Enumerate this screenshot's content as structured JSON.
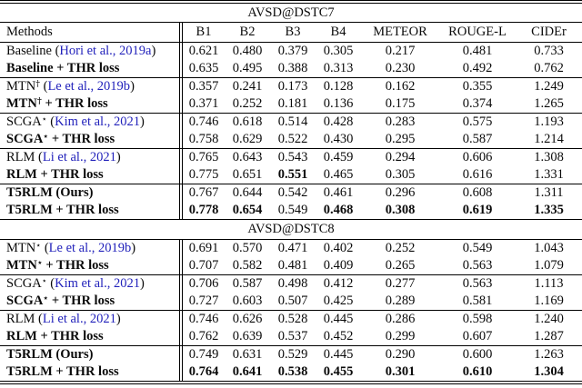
{
  "link_color": "#2222bb",
  "table": {
    "columns": [
      "Methods",
      "B1",
      "B2",
      "B3",
      "B4",
      "METEOR",
      "ROUGE-L",
      "CIDEr"
    ],
    "sections": [
      {
        "title": "AVSD@DSTC7",
        "groups": [
          {
            "rows": [
              {
                "method": {
                  "label": "Baseline",
                  "sup": "",
                  "suffix": "",
                  "cite": "Hori et al., 2019a",
                  "bold": false
                },
                "values": [
                  "0.621",
                  "0.480",
                  "0.379",
                  "0.305",
                  "0.217",
                  "0.481",
                  "0.733"
                ]
              },
              {
                "method": {
                  "label": "Baseline + THR loss",
                  "sup": "",
                  "suffix": "",
                  "cite": null,
                  "bold": true
                },
                "values": [
                  "0.635",
                  "0.495",
                  "0.388",
                  "0.313",
                  "0.230",
                  "0.492",
                  "0.762"
                ]
              }
            ]
          },
          {
            "rows": [
              {
                "method": {
                  "label": "MTN",
                  "sup": "†",
                  "suffix": "",
                  "cite": "Le et al., 2019b",
                  "bold": false
                },
                "values": [
                  "0.357",
                  "0.241",
                  "0.173",
                  "0.128",
                  "0.162",
                  "0.355",
                  "1.249"
                ]
              },
              {
                "method": {
                  "label": "MTN",
                  "sup": "†",
                  "suffix": " + THR loss",
                  "cite": null,
                  "bold": true
                },
                "values": [
                  "0.371",
                  "0.252",
                  "0.181",
                  "0.136",
                  "0.175",
                  "0.374",
                  "1.265"
                ]
              }
            ]
          },
          {
            "rows": [
              {
                "method": {
                  "label": "SCGA",
                  "sup": "⋆",
                  "suffix": "",
                  "cite": "Kim et al., 2021",
                  "bold": false
                },
                "values": [
                  "0.746",
                  "0.618",
                  "0.514",
                  "0.428",
                  "0.283",
                  "0.575",
                  "1.193"
                ]
              },
              {
                "method": {
                  "label": "SCGA",
                  "sup": "⋆",
                  "suffix": " + THR loss",
                  "cite": null,
                  "bold": true
                },
                "values": [
                  "0.758",
                  "0.629",
                  "0.522",
                  "0.430",
                  "0.295",
                  "0.587",
                  "1.214"
                ]
              }
            ]
          },
          {
            "rows": [
              {
                "method": {
                  "label": "RLM",
                  "sup": "",
                  "suffix": "",
                  "cite": "Li et al., 2021",
                  "bold": false
                },
                "values": [
                  "0.765",
                  "0.643",
                  "0.543",
                  "0.459",
                  "0.294",
                  "0.606",
                  "1.308"
                ]
              },
              {
                "method": {
                  "label": "RLM + THR loss",
                  "sup": "",
                  "suffix": "",
                  "cite": null,
                  "bold": true
                },
                "values": [
                  "0.775",
                  "0.651",
                  "0.551",
                  "0.465",
                  "0.305",
                  "0.616",
                  "1.331"
                ],
                "bold_values": [
                  false,
                  false,
                  true,
                  false,
                  false,
                  false,
                  false
                ]
              }
            ]
          },
          {
            "rows": [
              {
                "method": {
                  "label": "T5RLM (Ours)",
                  "sup": "",
                  "suffix": "",
                  "cite": null,
                  "bold": true
                },
                "values": [
                  "0.767",
                  "0.644",
                  "0.542",
                  "0.461",
                  "0.296",
                  "0.608",
                  "1.311"
                ]
              },
              {
                "method": {
                  "label": "T5RLM + THR loss",
                  "sup": "",
                  "suffix": "",
                  "cite": null,
                  "bold": true
                },
                "values": [
                  "0.778",
                  "0.654",
                  "0.549",
                  "0.468",
                  "0.308",
                  "0.619",
                  "1.335"
                ],
                "bold_values": [
                  true,
                  true,
                  false,
                  true,
                  true,
                  true,
                  true
                ]
              }
            ]
          }
        ]
      },
      {
        "title": "AVSD@DSTC8",
        "groups": [
          {
            "rows": [
              {
                "method": {
                  "label": "MTN",
                  "sup": "⋆",
                  "suffix": "",
                  "cite": "Le et al., 2019b",
                  "bold": false
                },
                "values": [
                  "0.691",
                  "0.570",
                  "0.471",
                  "0.402",
                  "0.252",
                  "0.549",
                  "1.043"
                ]
              },
              {
                "method": {
                  "label": "MTN",
                  "sup": "⋆",
                  "suffix": " + THR loss",
                  "cite": null,
                  "bold": true
                },
                "values": [
                  "0.707",
                  "0.582",
                  "0.481",
                  "0.409",
                  "0.265",
                  "0.563",
                  "1.079"
                ]
              }
            ]
          },
          {
            "rows": [
              {
                "method": {
                  "label": "SCGA",
                  "sup": "⋆",
                  "suffix": "",
                  "cite": "Kim et al., 2021",
                  "bold": false
                },
                "values": [
                  "0.706",
                  "0.587",
                  "0.498",
                  "0.412",
                  "0.277",
                  "0.563",
                  "1.113"
                ]
              },
              {
                "method": {
                  "label": "SCGA",
                  "sup": "⋆",
                  "suffix": " + THR loss",
                  "cite": null,
                  "bold": true
                },
                "values": [
                  "0.727",
                  "0.603",
                  "0.507",
                  "0.425",
                  "0.289",
                  "0.581",
                  "1.169"
                ]
              }
            ]
          },
          {
            "rows": [
              {
                "method": {
                  "label": "RLM",
                  "sup": "",
                  "suffix": "",
                  "cite": "Li et al., 2021",
                  "bold": false
                },
                "values": [
                  "0.746",
                  "0.626",
                  "0.528",
                  "0.445",
                  "0.286",
                  "0.598",
                  "1.240"
                ]
              },
              {
                "method": {
                  "label": "RLM + THR loss",
                  "sup": "",
                  "suffix": "",
                  "cite": null,
                  "bold": true
                },
                "values": [
                  "0.762",
                  "0.639",
                  "0.537",
                  "0.452",
                  "0.299",
                  "0.607",
                  "1.287"
                ]
              }
            ]
          },
          {
            "rows": [
              {
                "method": {
                  "label": "T5RLM (Ours)",
                  "sup": "",
                  "suffix": "",
                  "cite": null,
                  "bold": true
                },
                "values": [
                  "0.749",
                  "0.631",
                  "0.529",
                  "0.445",
                  "0.290",
                  "0.600",
                  "1.263"
                ]
              },
              {
                "method": {
                  "label": "T5RLM + THR loss",
                  "sup": "",
                  "suffix": "",
                  "cite": null,
                  "bold": true
                },
                "values": [
                  "0.764",
                  "0.641",
                  "0.538",
                  "0.455",
                  "0.301",
                  "0.610",
                  "1.304"
                ],
                "bold_values": [
                  true,
                  true,
                  true,
                  true,
                  true,
                  true,
                  true
                ]
              }
            ]
          }
        ]
      }
    ]
  }
}
